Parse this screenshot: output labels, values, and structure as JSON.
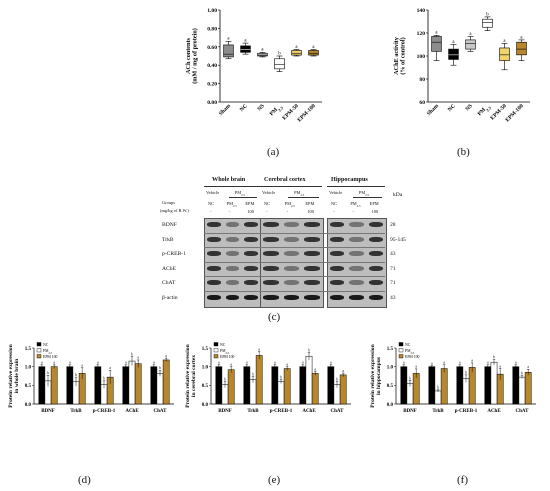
{
  "panels": {
    "a": "(a)",
    "b": "(b)",
    "c": "(c)",
    "d": "(d)",
    "e": "(e)",
    "f": "(f)"
  },
  "colors": {
    "sham": "#8c8c8c",
    "nc": "#000000",
    "ns": "#c8c8c8",
    "pm": "#ffffff",
    "epm50": "#f2d36b",
    "epm100": "#b8862b",
    "bar_nc": "#000000",
    "bar_pm": "#ffffff",
    "bar_epm": "#b8862b"
  },
  "western_blot": {
    "regions": [
      "Whole brain",
      "Cerebral cortex",
      "Hippocampus"
    ],
    "vehicle_label": "Vehicle",
    "pm_label": "PM2.5",
    "groups_caption": "Groups",
    "dose_caption": "(mg/kg of B.W.)",
    "lane_groups": [
      "NC",
      "PM2.5",
      "EPM"
    ],
    "lane_doses": [
      "-",
      "-",
      "100"
    ],
    "rows": [
      "BDNF",
      "TrkB",
      "p-CREB-1",
      "AChE",
      "ChAT",
      "β-actin"
    ],
    "kda_values": [
      "28",
      "95-145",
      "43",
      "71",
      "71",
      "43"
    ],
    "kda_unit": "kDa"
  },
  "chart_data": [
    {
      "id": "a",
      "type": "boxplot",
      "ylabel": "ACh contents\n(mM / mg of protein)",
      "ylim": [
        0.0,
        1.0
      ],
      "yticks": [
        "0.00",
        "0.20",
        "0.40",
        "0.60",
        "0.80",
        "1.00"
      ],
      "categories": [
        "Sham",
        "NC",
        "NS",
        "PM2.5",
        "EPM-50",
        "EPM-100"
      ],
      "boxes": [
        {
          "min": 0.47,
          "q1": 0.49,
          "median": 0.52,
          "q3": 0.62,
          "max": 0.66,
          "sig": "a"
        },
        {
          "min": 0.52,
          "q1": 0.54,
          "median": 0.57,
          "q3": 0.61,
          "max": 0.64,
          "sig": "a"
        },
        {
          "min": 0.49,
          "q1": 0.5,
          "median": 0.51,
          "q3": 0.53,
          "max": 0.54,
          "sig": "a"
        },
        {
          "min": 0.33,
          "q1": 0.36,
          "median": 0.41,
          "q3": 0.47,
          "max": 0.5,
          "sig": "b"
        },
        {
          "min": 0.5,
          "q1": 0.51,
          "median": 0.53,
          "q3": 0.56,
          "max": 0.57,
          "sig": "a"
        },
        {
          "min": 0.5,
          "q1": 0.51,
          "median": 0.53,
          "q3": 0.56,
          "max": 0.57,
          "sig": "a"
        }
      ]
    },
    {
      "id": "b",
      "type": "boxplot",
      "ylabel": "AChE activity\n(% of control)",
      "ylim": [
        60,
        140
      ],
      "yticks": [
        "60",
        "80",
        "100",
        "120",
        "140"
      ],
      "categories": [
        "Sham",
        "NC",
        "NS",
        "PM2.5",
        "EPM-50",
        "EPM-100"
      ],
      "boxes": [
        {
          "min": 96,
          "q1": 104,
          "median": 112,
          "q3": 117,
          "max": 118,
          "sig": "a"
        },
        {
          "min": 92,
          "q1": 97,
          "median": 101,
          "q3": 106,
          "max": 110,
          "sig": "a"
        },
        {
          "min": 104,
          "q1": 106,
          "median": 111,
          "q3": 114,
          "max": 117,
          "sig": "a"
        },
        {
          "min": 122,
          "q1": 125,
          "median": 129,
          "q3": 132,
          "max": 134,
          "sig": "b"
        },
        {
          "min": 88,
          "q1": 96,
          "median": 101,
          "q3": 107,
          "max": 111,
          "sig": "a"
        },
        {
          "min": 96,
          "q1": 101,
          "median": 106,
          "q3": 112,
          "max": 114,
          "sig": "a"
        }
      ]
    },
    {
      "id": "d",
      "type": "bar",
      "ylabel": "Protein relative expression\nin whole brain",
      "ylim": [
        0.0,
        1.5
      ],
      "yticks": [
        "0.0",
        "0.5",
        "1.0",
        "1.5"
      ],
      "categories": [
        "BDNF",
        "TrkB",
        "p-CREB-1",
        "AChE",
        "ChAT"
      ],
      "legend": [
        "NC",
        "PM2.5",
        "EPM 100"
      ],
      "series": [
        {
          "name": "NC",
          "values": [
            1.0,
            1.0,
            1.0,
            1.0,
            1.0
          ],
          "errors": [
            0.05,
            0.05,
            0.05,
            0.05,
            0.05
          ]
        },
        {
          "name": "PM2.5",
          "values": [
            0.62,
            0.6,
            0.52,
            1.15,
            0.82
          ],
          "errors": [
            0.15,
            0.12,
            0.1,
            0.12,
            0.08
          ]
        },
        {
          "name": "EPM 100",
          "values": [
            1.0,
            0.82,
            0.72,
            1.08,
            1.18
          ],
          "errors": [
            0.05,
            0.15,
            0.18,
            0.1,
            0.05
          ]
        }
      ]
    },
    {
      "id": "e",
      "type": "bar",
      "ylabel": "Protein relative expression\nin cerebral cortex",
      "ylim": [
        0.0,
        1.5
      ],
      "yticks": [
        "0.0",
        "0.5",
        "1.0",
        "1.5"
      ],
      "categories": [
        "BDNF",
        "TrkB",
        "p-CREB-1",
        "AChE",
        "ChAT"
      ],
      "legend": [
        "NC",
        "PM2.5",
        "EPM 100"
      ],
      "series": [
        {
          "name": "NC",
          "values": [
            1.0,
            1.0,
            1.0,
            1.0,
            1.0
          ],
          "errors": [
            0.05,
            0.05,
            0.05,
            0.05,
            0.05
          ]
        },
        {
          "name": "PM2.5",
          "values": [
            0.52,
            0.65,
            0.6,
            1.28,
            0.52
          ],
          "errors": [
            0.08,
            0.08,
            0.05,
            0.1,
            0.08
          ]
        },
        {
          "name": "EPM 100",
          "values": [
            0.92,
            1.3,
            0.95,
            0.82,
            0.78
          ],
          "errors": [
            0.08,
            0.1,
            0.05,
            0.05,
            0.05
          ]
        }
      ]
    },
    {
      "id": "f",
      "type": "bar",
      "ylabel": "Protein relative expression\nin hippocampus",
      "ylim": [
        0.0,
        1.5
      ],
      "yticks": [
        "0.0",
        "0.5",
        "1.0",
        "1.5"
      ],
      "categories": [
        "BDNF",
        "TrkB",
        "p-CREB-1",
        "AChE",
        "ChAT"
      ],
      "legend": [
        "NC",
        "PM2.5",
        "EPM 100"
      ],
      "series": [
        {
          "name": "NC",
          "values": [
            1.0,
            1.0,
            1.0,
            1.0,
            1.0
          ],
          "errors": [
            0.05,
            0.03,
            0.05,
            0.05,
            0.05
          ]
        },
        {
          "name": "PM2.5",
          "values": [
            0.55,
            0.35,
            0.68,
            1.12,
            0.72
          ],
          "errors": [
            0.08,
            0.03,
            0.1,
            0.08,
            0.04
          ]
        },
        {
          "name": "EPM 100",
          "values": [
            0.82,
            0.95,
            0.98,
            0.8,
            0.85
          ],
          "errors": [
            0.12,
            0.1,
            0.12,
            0.15,
            0.08
          ]
        }
      ]
    }
  ]
}
